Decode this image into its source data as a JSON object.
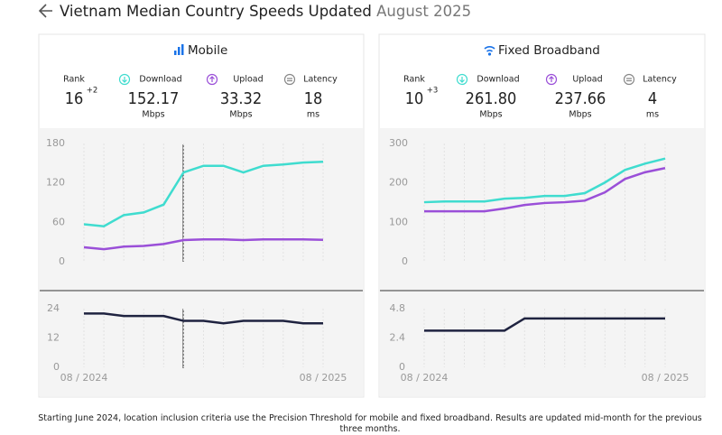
{
  "header": {
    "title": "Vietnam Median Country Speeds Updated",
    "date": "August 2025"
  },
  "panels": [
    {
      "title": "Mobile",
      "stats": [
        {
          "label": "Rank",
          "value": "16",
          "change": "+2"
        },
        {
          "label": "Download",
          "value": "152.17",
          "unit": "Mbps"
        },
        {
          "label": "Upload",
          "value": "33.32",
          "unit": "Mbps"
        },
        {
          "label": "Latency",
          "value": "18",
          "unit": "ms"
        }
      ]
    },
    {
      "title": "Fixed Broadband",
      "stats": [
        {
          "label": "Rank",
          "value": "10",
          "change": "+3"
        },
        {
          "label": "Download",
          "value": "261.80",
          "unit": "Mbps"
        },
        {
          "label": "Upload",
          "value": "237.66",
          "unit": "Mbps"
        },
        {
          "label": "Latency",
          "value": "4",
          "unit": "ms"
        }
      ]
    }
  ],
  "chart_data": [
    {
      "type": "line",
      "ylim": [
        0,
        180
      ],
      "yticks": [
        0,
        60,
        120,
        180
      ],
      "series": [
        {
          "color": "#3fdccf",
          "values": [
            57,
            54,
            71,
            75,
            87,
            136,
            146,
            146,
            136,
            146,
            148,
            151,
            152.17
          ]
        },
        {
          "color": "#9a4fd8",
          "values": [
            22,
            19,
            23,
            24,
            27,
            33,
            34,
            34,
            33,
            34,
            34,
            34,
            33.32
          ]
        }
      ]
    },
    {
      "type": "line",
      "ylim": [
        0,
        24
      ],
      "yticks": [
        0,
        12,
        24
      ],
      "categories": [
        "08 / 2024",
        null,
        null,
        null,
        null,
        null,
        null,
        null,
        null,
        null,
        null,
        null,
        "08 / 2025"
      ],
      "series": [
        {
          "color": "#1f2340",
          "values": [
            22,
            22,
            21,
            21,
            21,
            19,
            19,
            18,
            19,
            19,
            19,
            18,
            18
          ]
        }
      ]
    },
    {
      "type": "line",
      "ylim": [
        0,
        300
      ],
      "yticks": [
        0,
        100,
        200,
        300
      ],
      "series": [
        {
          "color": "#3fdccf",
          "values": [
            151,
            153,
            153,
            153,
            160,
            162,
            167,
            167,
            174,
            201,
            233,
            249,
            261.8
          ]
        },
        {
          "color": "#9a4fd8",
          "values": [
            128,
            128,
            128,
            128,
            135,
            144,
            149,
            151,
            155,
            176,
            210,
            227,
            237.66
          ]
        }
      ]
    },
    {
      "type": "line",
      "ylim": [
        0,
        4.8
      ],
      "yticks": [
        0,
        2.4,
        4.8
      ],
      "categories": [
        "08 / 2024",
        null,
        null,
        null,
        null,
        null,
        null,
        null,
        null,
        null,
        null,
        null,
        "08 / 2025"
      ],
      "series": [
        {
          "color": "#1f2340",
          "values": [
            3,
            3,
            3,
            3,
            3,
            4,
            4,
            4,
            4,
            4,
            4,
            4,
            4
          ]
        }
      ]
    }
  ],
  "footer": "Starting June 2024, location inclusion criteria use the Precision Threshold for mobile and fixed broadband. Results are updated mid-month for the previous three months."
}
